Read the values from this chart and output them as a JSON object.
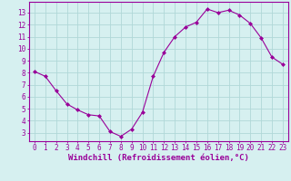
{
  "x": [
    0,
    1,
    2,
    3,
    4,
    5,
    6,
    7,
    8,
    9,
    10,
    11,
    12,
    13,
    14,
    15,
    16,
    17,
    18,
    19,
    20,
    21,
    22,
    23
  ],
  "y": [
    8.1,
    7.7,
    6.5,
    5.4,
    4.9,
    4.5,
    4.4,
    3.1,
    2.7,
    3.3,
    4.7,
    7.7,
    9.7,
    11.0,
    11.8,
    12.2,
    13.3,
    13.0,
    13.2,
    12.8,
    12.1,
    10.9,
    9.3,
    8.7
  ],
  "line_color": "#990099",
  "marker": "D",
  "marker_size": 2.0,
  "background_color": "#d6f0f0",
  "grid_color": "#b0d8d8",
  "xlabel": "Windchill (Refroidissement éolien,°C)",
  "xlabel_fontsize": 6.5,
  "xtick_labels": [
    "0",
    "1",
    "2",
    "3",
    "4",
    "5",
    "6",
    "7",
    "8",
    "9",
    "10",
    "11",
    "12",
    "13",
    "14",
    "15",
    "16",
    "17",
    "18",
    "19",
    "20",
    "21",
    "22",
    "23"
  ],
  "yticks": [
    3,
    4,
    5,
    6,
    7,
    8,
    9,
    10,
    11,
    12,
    13
  ],
  "ylim": [
    2.3,
    13.9
  ],
  "xlim": [
    -0.5,
    23.5
  ],
  "tick_color": "#990099",
  "tick_fontsize": 5.5,
  "spine_color": "#990099",
  "xlabel_fontweight": "bold",
  "xlabel_fontfamily": "monospace"
}
